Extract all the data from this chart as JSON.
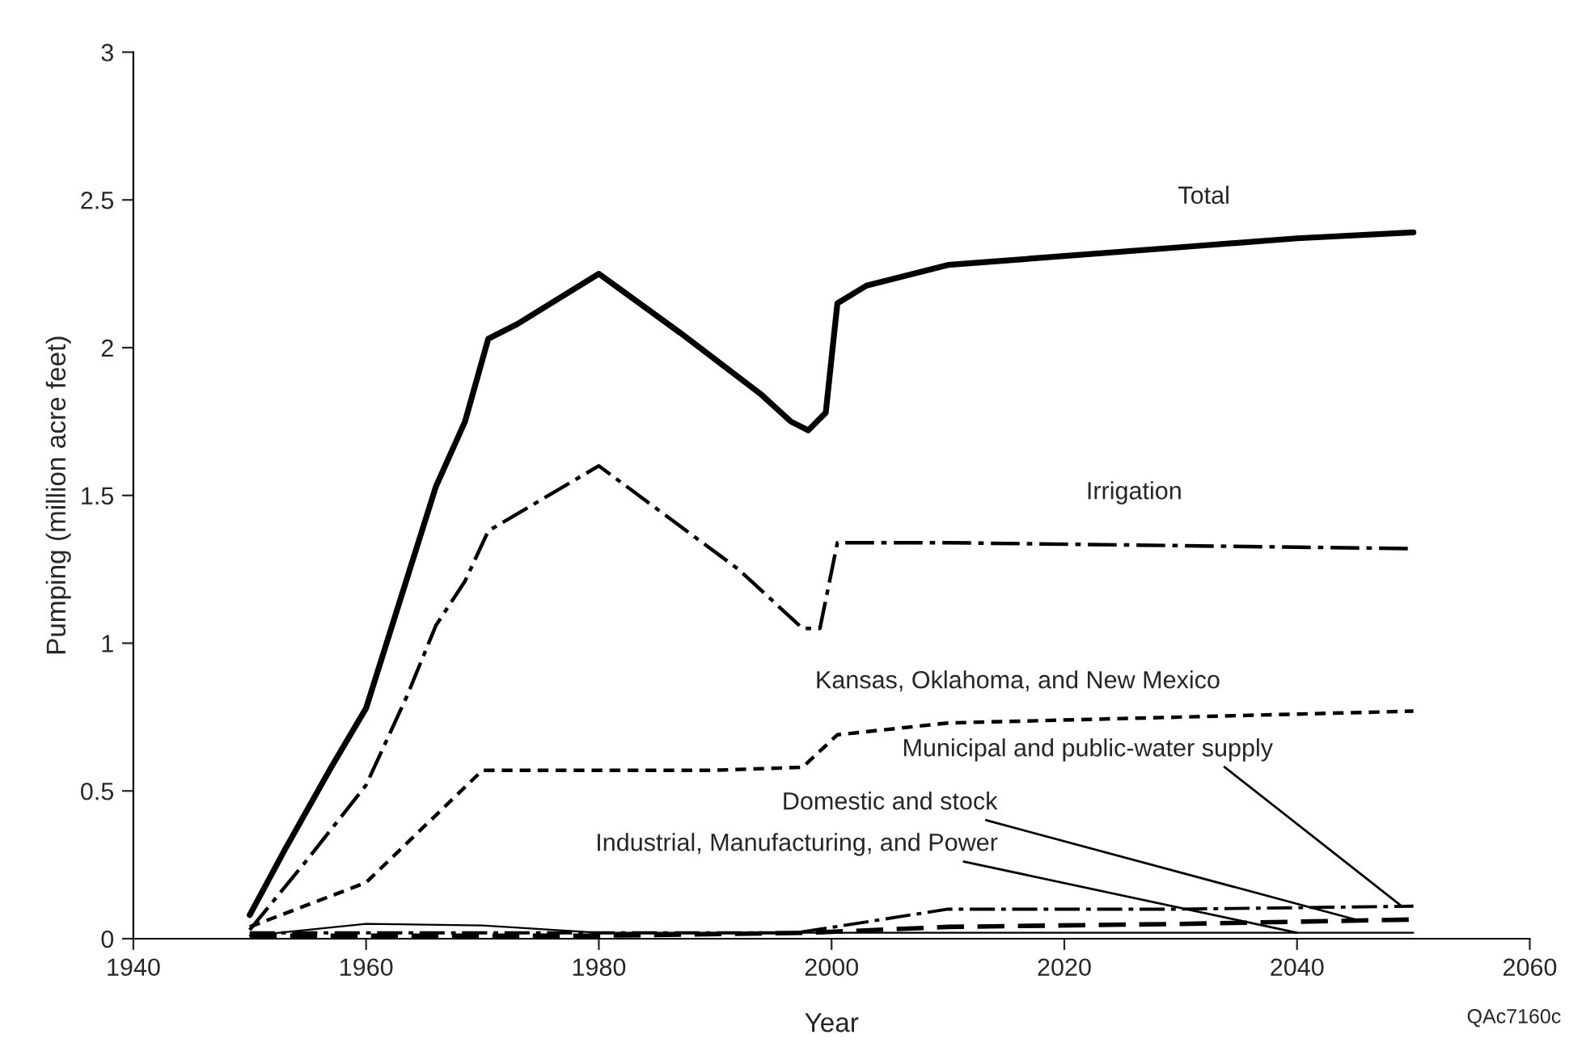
{
  "chart_data": {
    "type": "line",
    "xlabel": "Year",
    "ylabel": "Pumping (million acre feet)",
    "xlim": [
      1940,
      2060
    ],
    "ylim": [
      0,
      3
    ],
    "xticks": [
      1940,
      1960,
      1980,
      2000,
      2020,
      2040,
      2060
    ],
    "yticks": [
      0,
      0.5,
      1,
      1.5,
      2,
      2.5,
      3
    ],
    "grid": false,
    "legend": false,
    "marker": "none",
    "series": [
      {
        "name": "Total",
        "color": "#000000",
        "line_style": "solid",
        "x": [
          1950,
          1953,
          1957,
          1960,
          1964,
          1966,
          1968.5,
          1970.5,
          1973,
          1980,
          1987,
          1994,
          1996.5,
          1998,
          1999.5,
          2000.5,
          2003,
          2010,
          2020,
          2030,
          2040,
          2050
        ],
        "values": [
          0.08,
          0.3,
          0.58,
          0.78,
          1.28,
          1.53,
          1.75,
          2.03,
          2.08,
          2.25,
          2.05,
          1.84,
          1.75,
          1.72,
          1.78,
          2.15,
          2.21,
          2.28,
          2.31,
          2.34,
          2.37,
          2.39
        ]
      },
      {
        "name": "Irrigation",
        "color": "#000000",
        "line_style": "dashdot",
        "x": [
          1950,
          1955,
          1960,
          1963.5,
          1966,
          1968.5,
          1970.5,
          1980,
          1992,
          1997.5,
          1999,
          2000.5,
          2010,
          2030,
          2050
        ],
        "values": [
          0.03,
          0.27,
          0.52,
          0.82,
          1.06,
          1.21,
          1.38,
          1.6,
          1.25,
          1.05,
          1.05,
          1.34,
          1.34,
          1.33,
          1.32
        ]
      },
      {
        "name": "Kansas, Oklahoma, and New Mexico",
        "color": "#000000",
        "line_style": "dotted",
        "x": [
          1950,
          1960,
          1970,
          1980,
          1990,
          1997.5,
          2000.5,
          2010,
          2030,
          2050
        ],
        "values": [
          0.04,
          0.19,
          0.57,
          0.57,
          0.57,
          0.58,
          0.69,
          0.73,
          0.75,
          0.77
        ]
      },
      {
        "name": "Municipal and public-water supply",
        "color": "#000000",
        "line_style": "dashdot",
        "x": [
          1950,
          1960,
          1980,
          1997,
          2010,
          2030,
          2050
        ],
        "values": [
          0.02,
          0.02,
          0.02,
          0.02,
          0.1,
          0.1,
          0.11
        ]
      },
      {
        "name": "Domestic and stock",
        "color": "#000000",
        "line_style": "dashed",
        "x": [
          1950,
          1960,
          1980,
          1998,
          2010,
          2030,
          2050
        ],
        "values": [
          0.01,
          0.01,
          0.01,
          0.02,
          0.04,
          0.05,
          0.065
        ]
      },
      {
        "name": "Industrial, Manufacturing, and Power",
        "color": "#000000",
        "line_style": "solid",
        "x": [
          1950,
          1960,
          1970,
          1980,
          2000,
          2020,
          2050
        ],
        "values": [
          0.01,
          0.05,
          0.045,
          0.02,
          0.02,
          0.02,
          0.02
        ]
      }
    ],
    "annotations": [
      "QAc7160c"
    ]
  }
}
